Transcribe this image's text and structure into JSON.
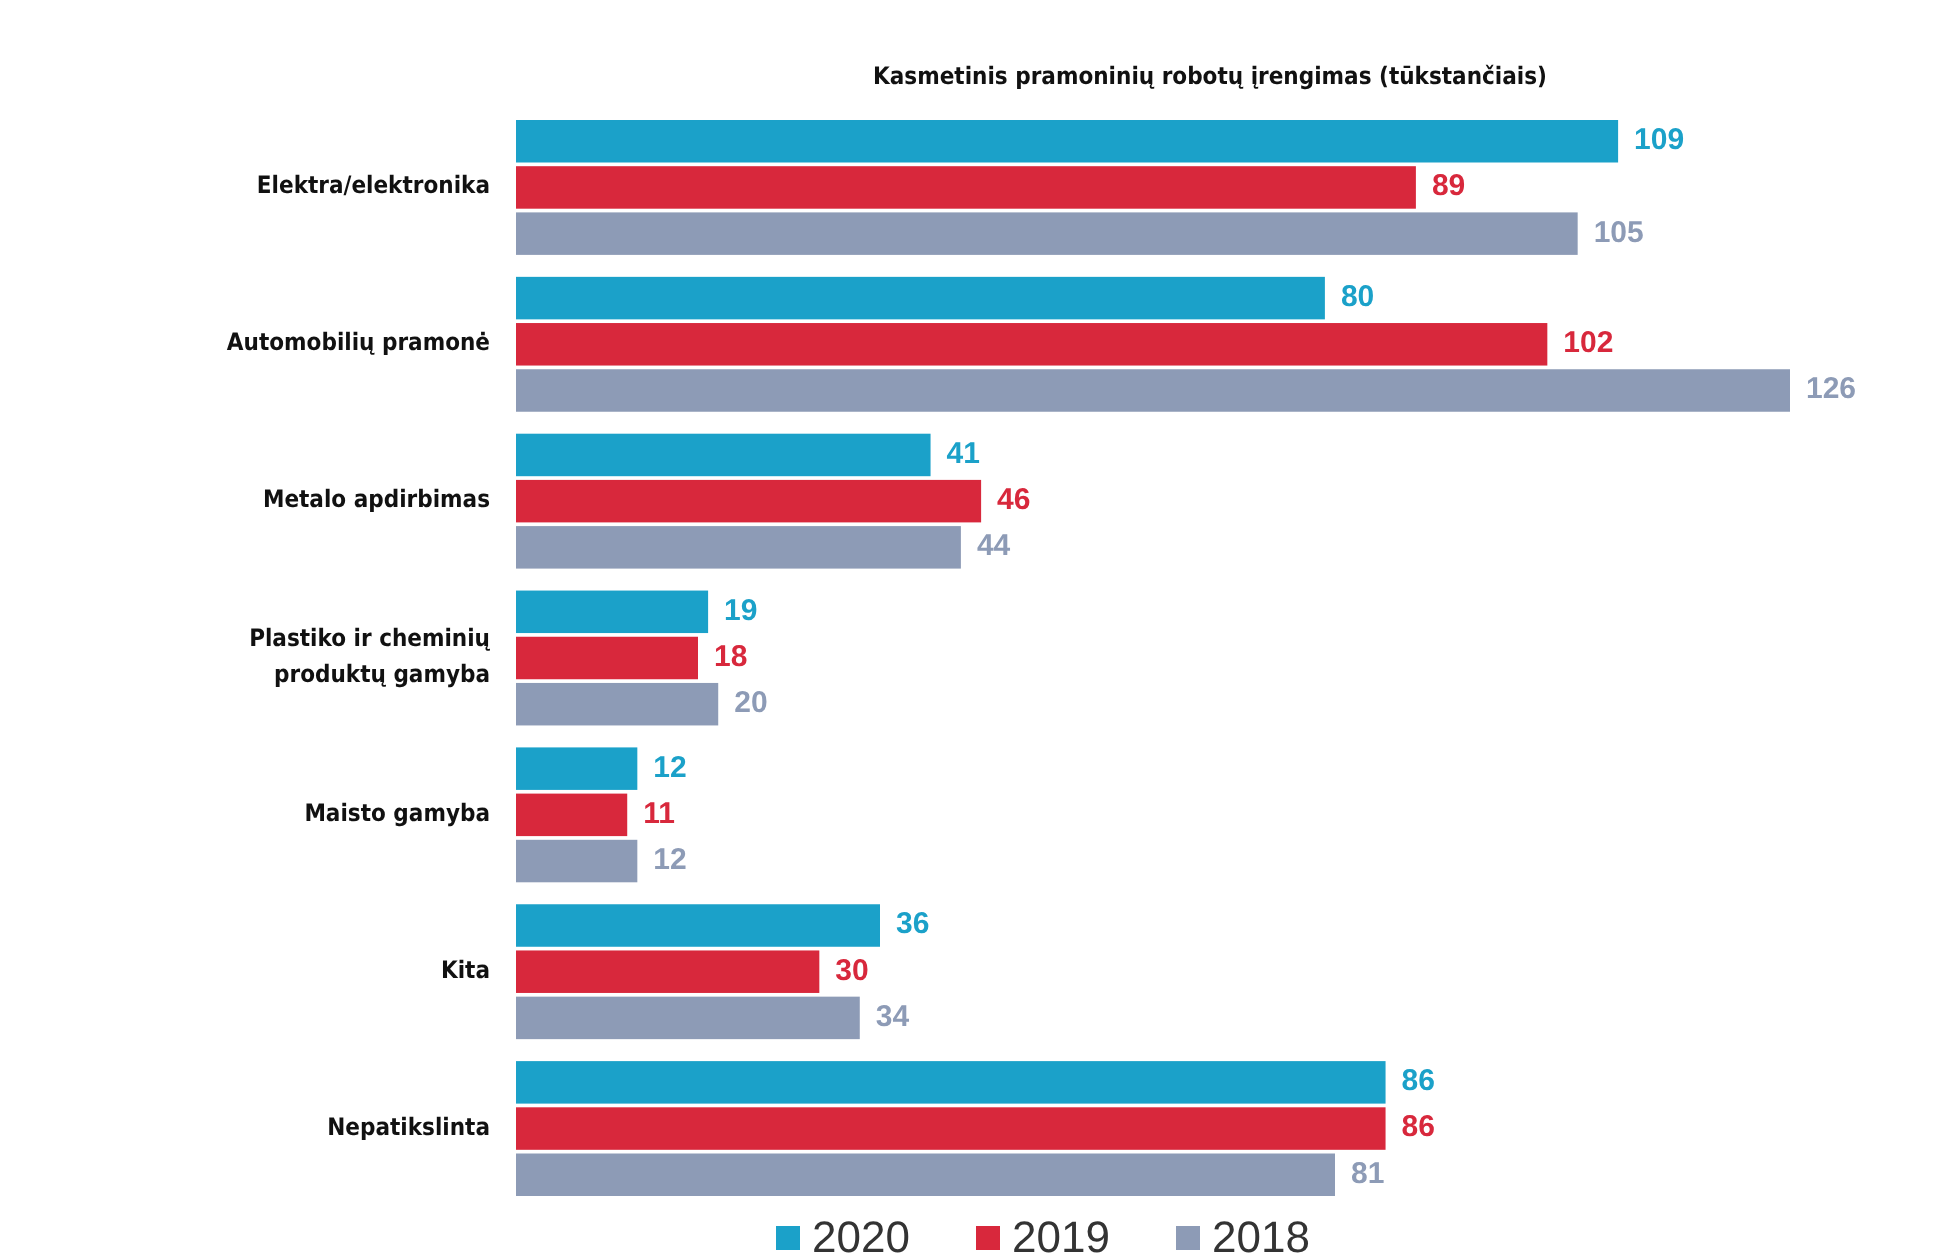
{
  "chart_data": {
    "type": "bar",
    "orientation": "horizontal",
    "title": "Kasmetinis pramoninių robotų įrengimas (tūkstančiais)",
    "categories": [
      "Elektra/elektronika",
      "Automobilių pramonė",
      "Metalo apdirbimas",
      "Plastiko ir cheminių produktų gamyba",
      "Maisto gamyba",
      "Kita",
      "Nepatikslinta"
    ],
    "series": [
      {
        "name": "2020",
        "color": "#1ba1c9",
        "values": [
          109,
          80,
          41,
          19,
          12,
          36,
          86
        ]
      },
      {
        "name": "2019",
        "color": "#d8283c",
        "values": [
          89,
          102,
          46,
          18,
          11,
          30,
          86
        ]
      },
      {
        "name": "2018",
        "color": "#8d9bb6",
        "values": [
          105,
          126,
          44,
          20,
          12,
          34,
          81
        ]
      }
    ],
    "data_labels": true,
    "legend": "bottom"
  }
}
